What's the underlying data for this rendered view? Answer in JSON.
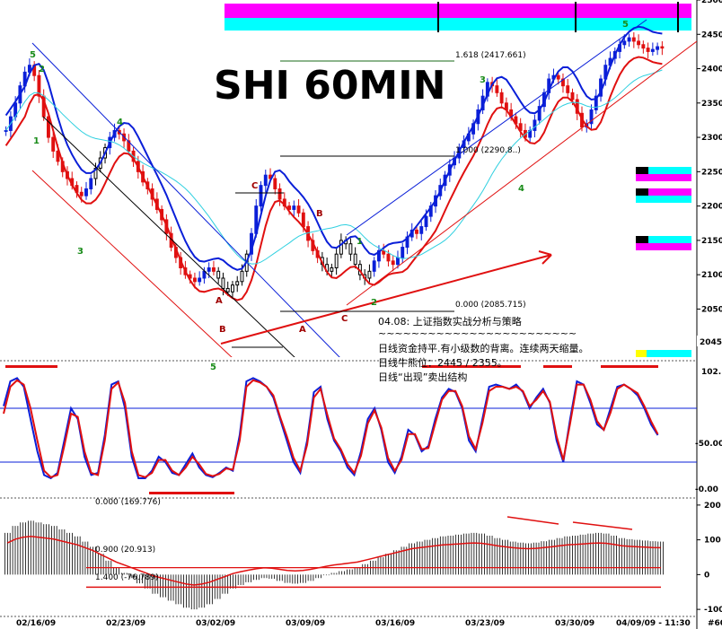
{
  "title": "SHI 60MIN",
  "colors": {
    "up_candle": "#0a1fd8",
    "down_candle": "#e01010",
    "neutral_candle": "#000000",
    "ma_blue": "#0a1fd8",
    "ma_red": "#e01010",
    "ma_cyan": "#30d0e0",
    "magenta": "#ff00ff",
    "cyan": "#00ffff",
    "yellow": "#ffff00",
    "wave_green": "#1a8c1a",
    "wave_red": "#a00000"
  },
  "fib_labels": [
    "1.618 (2417.661)",
    "1.000 (2290.8..)",
    "0.000 (2085.715)"
  ],
  "wave_labels_green": [
    "5",
    "4",
    "3",
    "5",
    "1",
    "2",
    "3",
    "4",
    "5",
    "1",
    "2"
  ],
  "wave_labels_red": [
    "A",
    "B",
    "C",
    "A",
    "B",
    "C"
  ],
  "commentary": {
    "heading": "04.08: 上证指数实战分析与策略",
    "divider": "~~~~~~~~~~~~~~~~~~~~~~~~",
    "line1": "日线资金持平.有小级数的背离。连续两天缩量。",
    "line2": "日线牛熊位：2445 / 2355。",
    "line3": "日线“出现”卖出结构"
  },
  "price_panel_current": "2045.",
  "stoch_panel": {
    "top_label": "102.",
    "ticks": [
      "-50.00",
      "-0.00"
    ]
  },
  "macd_panel": {
    "labels": [
      "0.000 (169.776)",
      "0.900 (20.913)",
      "1.400 (-76.789)"
    ]
  },
  "x_axis": {
    "dates": [
      "02/16/09",
      "02/23/09",
      "03/02/09",
      "03/09/09",
      "03/16/09",
      "03/23/09",
      "03/30/09",
      "04/09/09 - 11:30",
      "#60"
    ]
  },
  "chart_data": [
    {
      "type": "candlestick",
      "title": "SHI 60MIN",
      "ylim": [
        1980,
        2500
      ],
      "y_ticks": [
        2000,
        2050,
        2100,
        2150,
        2200,
        2250,
        2300,
        2350,
        2400,
        2450,
        2500
      ],
      "x_tick_labels": [
        "02/16/09",
        "02/23/09",
        "03/02/09",
        "03/09/09",
        "03/16/09",
        "03/23/09",
        "03/30/09",
        "04/09/09 - 11:30"
      ],
      "close_path": [
        2310,
        2330,
        2350,
        2375,
        2395,
        2405,
        2390,
        2360,
        2330,
        2300,
        2280,
        2265,
        2250,
        2240,
        2230,
        2220,
        2215,
        2225,
        2240,
        2255,
        2270,
        2285,
        2300,
        2310,
        2305,
        2295,
        2280,
        2265,
        2250,
        2235,
        2225,
        2210,
        2195,
        2180,
        2160,
        2140,
        2125,
        2110,
        2100,
        2095,
        2090,
        2095,
        2105,
        2110,
        2105,
        2095,
        2080,
        2075,
        2085,
        2090,
        2105,
        2130,
        2160,
        2200,
        2230,
        2245,
        2240,
        2225,
        2210,
        2200,
        2195,
        2200,
        2190,
        2170,
        2150,
        2135,
        2125,
        2115,
        2105,
        2110,
        2130,
        2150,
        2145,
        2130,
        2115,
        2100,
        2095,
        2105,
        2120,
        2135,
        2130,
        2120,
        2115,
        2125,
        2140,
        2155,
        2165,
        2160,
        2170,
        2185,
        2200,
        2215,
        2230,
        2245,
        2260,
        2270,
        2285,
        2295,
        2305,
        2320,
        2340,
        2360,
        2380,
        2375,
        2365,
        2350,
        2340,
        2330,
        2320,
        2310,
        2300,
        2310,
        2325,
        2345,
        2365,
        2385,
        2390,
        2385,
        2375,
        2365,
        2355,
        2335,
        2315,
        2320,
        2340,
        2360,
        2385,
        2405,
        2415,
        2425,
        2435,
        2440,
        2445,
        2440,
        2435,
        2430,
        2425,
        2428,
        2432,
        2430
      ],
      "fib_levels": [
        {
          "label": "1.618",
          "value": 2417.661
        },
        {
          "label": "0.000",
          "value": 2085.715
        }
      ]
    },
    {
      "type": "line",
      "name": "stochastic",
      "ylim": [
        -10,
        110
      ],
      "y_ticks": [
        0,
        50,
        100
      ],
      "series": [
        {
          "values": [
            72,
            95,
            98,
            90,
            60,
            30,
            8,
            5,
            10,
            40,
            70,
            60,
            25,
            8,
            10,
            45,
            92,
            95,
            70,
            25,
            5,
            5,
            12,
            25,
            20,
            10,
            8,
            18,
            28,
            15,
            8,
            6,
            10,
            15,
            12,
            45,
            95,
            98,
            95,
            90,
            80,
            60,
            40,
            20,
            10,
            40,
            85,
            90,
            60,
            40,
            30,
            15,
            8,
            30,
            60,
            70,
            50,
            20,
            10,
            25,
            50,
            45,
            30,
            35,
            60,
            80,
            88,
            85,
            70,
            40,
            30,
            60,
            90,
            92,
            90,
            88,
            92,
            85,
            70,
            80,
            88,
            75,
            40,
            20,
            60,
            95,
            92,
            75,
            55,
            50,
            70,
            90,
            92,
            88,
            82,
            70,
            55,
            45
          ]
        },
        {
          "values": [
            65,
            90,
            96,
            92,
            70,
            40,
            12,
            6,
            8,
            35,
            65,
            62,
            30,
            10,
            8,
            40,
            88,
            94,
            75,
            30,
            8,
            6,
            10,
            22,
            22,
            12,
            8,
            15,
            25,
            18,
            9,
            7,
            9,
            14,
            13,
            40,
            90,
            96,
            94,
            90,
            82,
            62,
            44,
            24,
            12,
            36,
            80,
            88,
            64,
            42,
            32,
            18,
            10,
            26,
            56,
            68,
            52,
            24,
            12,
            22,
            46,
            46,
            32,
            33,
            56,
            78,
            86,
            86,
            72,
            44,
            32,
            56,
            86,
            90,
            90,
            88,
            90,
            86,
            72,
            78,
            86,
            76,
            44,
            22,
            56,
            92,
            92,
            78,
            58,
            50,
            66,
            88,
            92,
            88,
            84,
            72,
            58,
            46
          ]
        }
      ]
    },
    {
      "type": "bar",
      "name": "macd",
      "ylim": [
        -110,
        210
      ],
      "y_ticks": [
        -100,
        0,
        100,
        200
      ],
      "values": [
        120,
        140,
        150,
        155,
        150,
        145,
        140,
        130,
        120,
        110,
        95,
        80,
        60,
        40,
        20,
        5,
        -10,
        -25,
        -40,
        -55,
        -65,
        -75,
        -85,
        -95,
        -100,
        -95,
        -85,
        -70,
        -55,
        -40,
        -30,
        -22,
        -15,
        -10,
        -12,
        -18,
        -24,
        -26,
        -24,
        -18,
        -10,
        -2,
        5,
        10,
        15,
        20,
        30,
        40,
        50,
        60,
        70,
        80,
        90,
        95,
        100,
        105,
        110,
        112,
        115,
        118,
        120,
        118,
        112,
        105,
        100,
        95,
        92,
        90,
        92,
        96,
        100,
        105,
        110,
        112,
        115,
        118,
        120,
        118,
        112,
        105,
        102,
        100,
        98,
        96,
        95
      ]
    }
  ]
}
